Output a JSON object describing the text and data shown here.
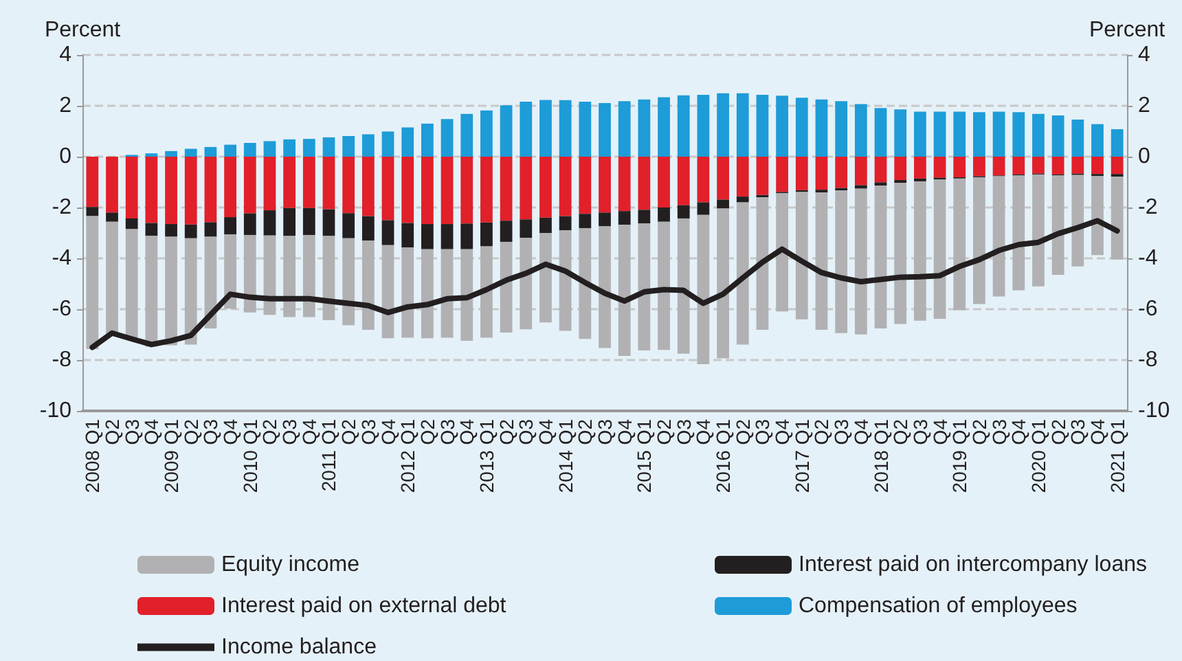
{
  "chart_data": {
    "type": "bar",
    "stacked": true,
    "ylabel": "Percent",
    "y2label": "Percent",
    "categories": [
      "2008 Q1",
      "Q2",
      "Q3",
      "Q4",
      "2009 Q1",
      "Q2",
      "Q3",
      "Q4",
      "2010 Q1",
      "Q2",
      "Q3",
      "Q4",
      "2011 Q1",
      "Q2",
      "Q3",
      "Q4",
      "2012 Q1",
      "Q2",
      "Q3",
      "Q4",
      "2013 Q1",
      "Q2",
      "Q3",
      "Q4",
      "2014 Q1",
      "Q2",
      "Q3",
      "Q4",
      "2015 Q1",
      "Q2",
      "Q3",
      "Q4",
      "2016 Q1",
      "Q2",
      "Q3",
      "Q4",
      "2017 Q1",
      "Q2",
      "Q3",
      "Q4",
      "2018 Q1",
      "Q2",
      "Q3",
      "Q4",
      "2019 Q1",
      "Q2",
      "Q3",
      "Q4",
      "2020 Q1",
      "Q2",
      "Q3",
      "Q4",
      "2021 Q1"
    ],
    "series": [
      {
        "name": "Interest paid on external debt",
        "color": "#e1202a",
        "values": [
          -1.98,
          -2.2,
          -2.43,
          -2.61,
          -2.65,
          -2.67,
          -2.58,
          -2.38,
          -2.23,
          -2.11,
          -2.02,
          -2.02,
          -2.07,
          -2.22,
          -2.34,
          -2.5,
          -2.61,
          -2.65,
          -2.65,
          -2.63,
          -2.59,
          -2.52,
          -2.47,
          -2.4,
          -2.34,
          -2.25,
          -2.2,
          -2.14,
          -2.09,
          -2.0,
          -1.91,
          -1.8,
          -1.69,
          -1.57,
          -1.51,
          -1.39,
          -1.32,
          -1.3,
          -1.23,
          -1.12,
          -1.01,
          -0.92,
          -0.86,
          -0.83,
          -0.81,
          -0.77,
          -0.74,
          -0.7,
          -0.67,
          -0.7,
          -0.67,
          -0.68,
          -0.68
        ]
      },
      {
        "name": "Interest paid on intercompany loans",
        "color": "#231f20",
        "values": [
          -0.36,
          -0.36,
          -0.42,
          -0.5,
          -0.5,
          -0.54,
          -0.57,
          -0.68,
          -0.85,
          -0.99,
          -1.1,
          -1.06,
          -1.05,
          -0.99,
          -0.96,
          -0.98,
          -0.96,
          -0.99,
          -0.99,
          -1.01,
          -0.94,
          -0.83,
          -0.72,
          -0.61,
          -0.56,
          -0.56,
          -0.54,
          -0.54,
          -0.54,
          -0.56,
          -0.52,
          -0.49,
          -0.35,
          -0.23,
          -0.09,
          -0.05,
          -0.07,
          -0.11,
          -0.1,
          -0.14,
          -0.13,
          -0.11,
          -0.11,
          -0.07,
          -0.05,
          -0.04,
          -0.03,
          -0.04,
          -0.03,
          -0.04,
          -0.05,
          -0.08,
          -0.11
        ]
      },
      {
        "name": "Equity income",
        "color": "#b1b1b3",
        "values": [
          -5.23,
          -4.47,
          -4.27,
          -4.36,
          -4.27,
          -4.18,
          -3.61,
          -2.92,
          -3.05,
          -3.12,
          -3.19,
          -3.23,
          -3.31,
          -3.42,
          -3.51,
          -3.66,
          -3.55,
          -3.5,
          -3.48,
          -3.6,
          -3.59,
          -3.57,
          -3.6,
          -3.51,
          -3.95,
          -4.36,
          -4.79,
          -5.16,
          -4.99,
          -5.04,
          -5.32,
          -5.87,
          -5.89,
          -5.59,
          -5.21,
          -4.65,
          -5.01,
          -5.4,
          -5.61,
          -5.73,
          -5.62,
          -5.55,
          -5.48,
          -5.48,
          -5.18,
          -4.99,
          -4.73,
          -4.52,
          -4.4,
          -3.91,
          -3.6,
          -3.11,
          -3.26
        ]
      },
      {
        "name": "Compensation of employees",
        "color": "#1d9cd8",
        "values": [
          0,
          0,
          0.07,
          0.13,
          0.22,
          0.31,
          0.38,
          0.47,
          0.54,
          0.61,
          0.68,
          0.7,
          0.76,
          0.81,
          0.88,
          0.99,
          1.15,
          1.3,
          1.48,
          1.68,
          1.82,
          2.02,
          2.16,
          2.23,
          2.22,
          2.16,
          2.11,
          2.18,
          2.25,
          2.34,
          2.41,
          2.43,
          2.49,
          2.49,
          2.43,
          2.4,
          2.32,
          2.25,
          2.18,
          2.07,
          1.91,
          1.86,
          1.77,
          1.77,
          1.77,
          1.75,
          1.77,
          1.75,
          1.68,
          1.62,
          1.46,
          1.28,
          1.08
        ]
      },
      {
        "name": "Income balance",
        "type": "line",
        "color": "#231f20",
        "values": [
          -7.5,
          -6.94,
          -7.17,
          -7.39,
          -7.24,
          -7.03,
          -6.22,
          -5.41,
          -5.53,
          -5.59,
          -5.59,
          -5.59,
          -5.68,
          -5.77,
          -5.86,
          -6.13,
          -5.91,
          -5.82,
          -5.59,
          -5.55,
          -5.23,
          -4.86,
          -4.59,
          -4.23,
          -4.5,
          -4.95,
          -5.37,
          -5.68,
          -5.32,
          -5.23,
          -5.26,
          -5.77,
          -5.41,
          -4.77,
          -4.15,
          -3.64,
          -4.11,
          -4.56,
          -4.77,
          -4.92,
          -4.83,
          -4.74,
          -4.72,
          -4.68,
          -4.32,
          -4.05,
          -3.69,
          -3.46,
          -3.37,
          -3.03,
          -2.79,
          -2.52,
          -2.92
        ]
      }
    ],
    "ylim": [
      -10,
      4
    ],
    "yticks": [
      -10,
      -8,
      -6,
      -4,
      -2,
      0,
      2,
      4
    ],
    "y2lim": [
      -10,
      4
    ],
    "y2ticks": [
      -10,
      -8,
      -6,
      -4,
      -2,
      0,
      2,
      4
    ],
    "grid": "y",
    "legend": "bottom",
    "marker": "none",
    "line_style": "solid"
  }
}
